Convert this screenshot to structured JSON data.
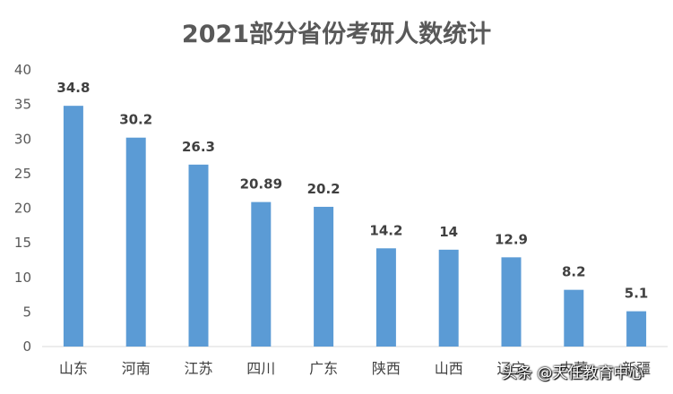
{
  "chart_data": {
    "type": "bar",
    "title": "2021部分省份考研人数统计",
    "categories": [
      "山东",
      "河南",
      "江苏",
      "四川",
      "广东",
      "陕西",
      "山西",
      "辽宁",
      "内蒙",
      "新疆"
    ],
    "values": [
      34.8,
      30.2,
      26.3,
      20.89,
      20.2,
      14.2,
      14,
      12.9,
      8.2,
      5.1
    ],
    "value_labels": [
      "34.8",
      "30.2",
      "26.3",
      "20.89",
      "20.2",
      "14.2",
      "14",
      "12.9",
      "8.2",
      "5.1"
    ],
    "ylim": [
      0,
      40
    ],
    "yticks": [
      0,
      5,
      10,
      15,
      20,
      25,
      30,
      35,
      40
    ],
    "grid": false,
    "legend": "none",
    "bar_color": "#5B9BD5"
  },
  "watermark": {
    "text": "头条 @天任教育中心"
  }
}
